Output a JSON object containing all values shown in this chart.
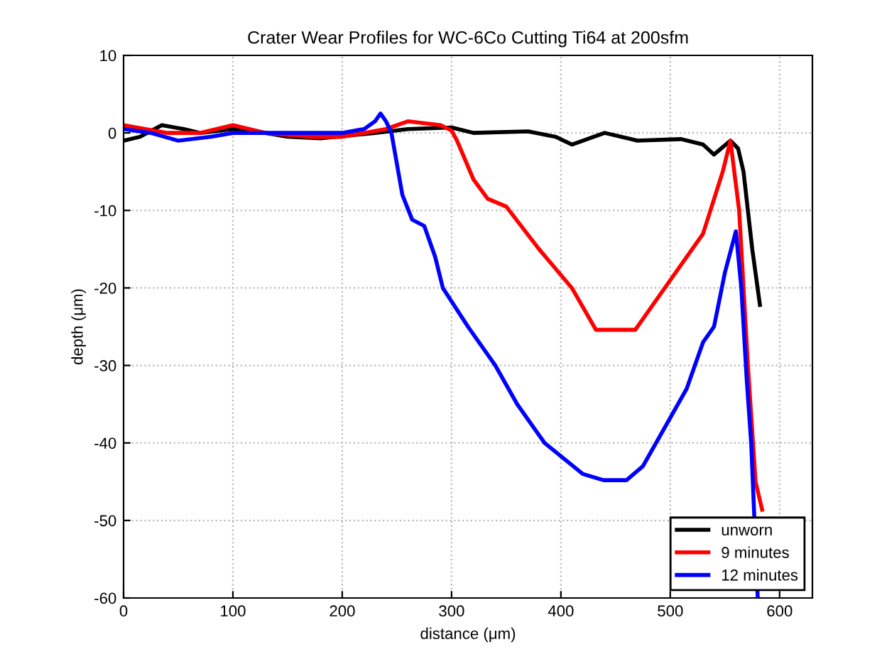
{
  "chart_data": {
    "type": "line",
    "title": "Crater Wear Profiles for WC-6Co Cutting Ti64 at 200sfm",
    "xlabel": "distance (μm)",
    "ylabel": "depth (μm)",
    "xlim": [
      0,
      630
    ],
    "ylim": [
      -60,
      10
    ],
    "xticks": [
      0,
      100,
      200,
      300,
      400,
      500,
      600
    ],
    "yticks": [
      -60,
      -50,
      -40,
      -30,
      -20,
      -10,
      0,
      10
    ],
    "grid": true,
    "legend": "bottom right",
    "line_style": "solid",
    "marker": "none",
    "series": [
      {
        "name": "unworn",
        "color": "#000000",
        "x": [
          0,
          15,
          35,
          55,
          70,
          100,
          130,
          150,
          180,
          230,
          260,
          300,
          320,
          370,
          395,
          410,
          440,
          470,
          510,
          530,
          540,
          555,
          562,
          567,
          575,
          582
        ],
        "values": [
          -1,
          -0.5,
          1,
          0.5,
          0,
          0.5,
          0,
          -0.5,
          -0.7,
          0,
          0.5,
          0.7,
          0,
          0.2,
          -0.5,
          -1.5,
          0,
          -1,
          -0.8,
          -1.5,
          -2.8,
          -1,
          -2,
          -5,
          -15,
          -22.2
        ]
      },
      {
        "name": "9 minutes",
        "color": "#ff0000",
        "x": [
          0,
          20,
          40,
          70,
          100,
          130,
          170,
          200,
          220,
          240,
          260,
          290,
          300,
          305,
          320,
          333,
          350,
          380,
          410,
          432,
          468,
          485,
          500,
          530,
          548,
          555,
          563,
          571,
          578,
          584
        ],
        "values": [
          1,
          0.5,
          0,
          0,
          1,
          0,
          -0.5,
          -0.5,
          0,
          0.5,
          1.5,
          1,
          0.3,
          -1,
          -6,
          -8.5,
          -9.5,
          -15,
          -20,
          -25.4,
          -25.4,
          -22,
          -19,
          -13,
          -5,
          -1,
          -10,
          -30,
          -45,
          -48.6
        ]
      },
      {
        "name": "12 minutes",
        "color": "#0000ff",
        "x": [
          0,
          25,
          50,
          80,
          100,
          150,
          200,
          220,
          230,
          235,
          240,
          245,
          255,
          264,
          275,
          285,
          292,
          315,
          340,
          360,
          385,
          420,
          439,
          460,
          475,
          495,
          515,
          530,
          540,
          550,
          560,
          565,
          570,
          574,
          580
        ],
        "values": [
          0.5,
          0,
          -1,
          -0.5,
          0,
          0,
          0,
          0.5,
          1.5,
          2.5,
          1.5,
          0,
          -8,
          -11.2,
          -12,
          -16,
          -20,
          -25,
          -30,
          -35,
          -40,
          -44,
          -44.8,
          -44.8,
          -43,
          -38,
          -33,
          -27,
          -25,
          -18,
          -12.7,
          -20,
          -32,
          -40,
          -60
        ]
      }
    ]
  }
}
